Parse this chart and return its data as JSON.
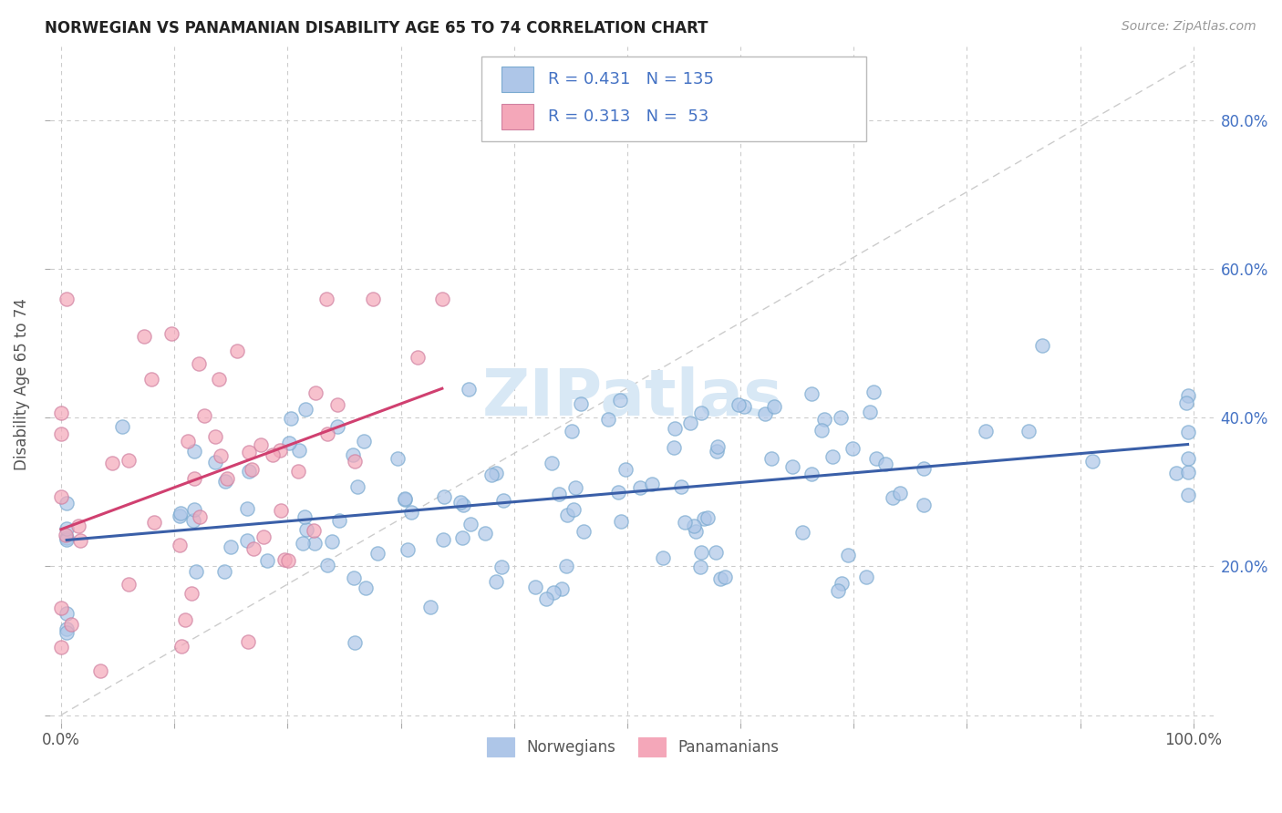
{
  "title": "NORWEGIAN VS PANAMANIAN DISABILITY AGE 65 TO 74 CORRELATION CHART",
  "source": "Source: ZipAtlas.com",
  "ylabel": "Disability Age 65 to 74",
  "norwegian_color": "#aec6e8",
  "panamanian_color": "#f4a7b9",
  "norwegian_line_color": "#3a5fa8",
  "panamanian_line_color": "#d04070",
  "ref_line_color": "#cccccc",
  "legend_blue_color": "#4472c4",
  "background_color": "#ffffff",
  "grid_color": "#cccccc",
  "right_tick_color": "#4472c4",
  "watermark_color": "#d8e8f5"
}
